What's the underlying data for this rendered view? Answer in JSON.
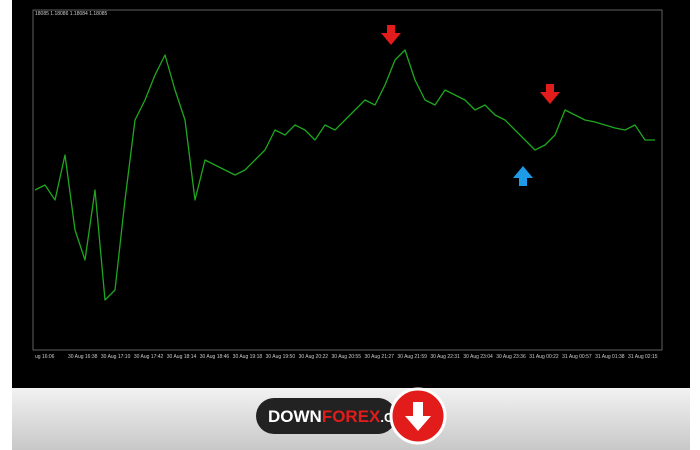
{
  "chart_data": {
    "type": "line",
    "header": "18085 1.18086 1.18084 1.18085",
    "color": "#1fa61f",
    "ylim": [
      1.179,
      1.1824
    ],
    "values": [
      1.1806,
      1.18065,
      1.1805,
      1.18095,
      1.1802,
      1.1799,
      1.1806,
      1.1795,
      1.1796,
      1.1805,
      1.1813,
      1.1815,
      1.18175,
      1.18195,
      1.1816,
      1.1813,
      1.1805,
      1.1809,
      1.18085,
      1.1808,
      1.18075,
      1.1808,
      1.1809,
      1.181,
      1.1812,
      1.18115,
      1.18125,
      1.1812,
      1.1811,
      1.18125,
      1.1812,
      1.1813,
      1.1814,
      1.1815,
      1.18145,
      1.18165,
      1.1819,
      1.182,
      1.1817,
      1.1815,
      1.18145,
      1.1816,
      1.18155,
      1.1815,
      1.1814,
      1.18145,
      1.18135,
      1.1813,
      1.1812,
      1.1811,
      1.181,
      1.18105,
      1.18115,
      1.1814,
      1.18135,
      1.1813,
      1.18128,
      1.18125,
      1.18122,
      1.1812,
      1.18125,
      1.1811,
      1.1811
    ],
    "xtick_labels": [
      "ug 16:06",
      "30 Aug 16:38",
      "30 Aug 17:10",
      "30 Aug 17:42",
      "30 Aug 18:14",
      "30 Aug 18:46",
      "30 Aug 19:18",
      "30 Aug 19:50",
      "30 Aug 20:22",
      "30 Aug 20:55",
      "30 Aug 21:27",
      "30 Aug 21:59",
      "30 Aug 22:31",
      "30 Aug 23:04",
      "30 Aug 23:36",
      "31 Aug 00:22",
      "31 Aug 00:57",
      "31 Aug 01:38",
      "31 Aug 02:15"
    ]
  },
  "logo": {
    "parts": [
      "DOWN",
      "FOREX",
      ".COM"
    ]
  }
}
